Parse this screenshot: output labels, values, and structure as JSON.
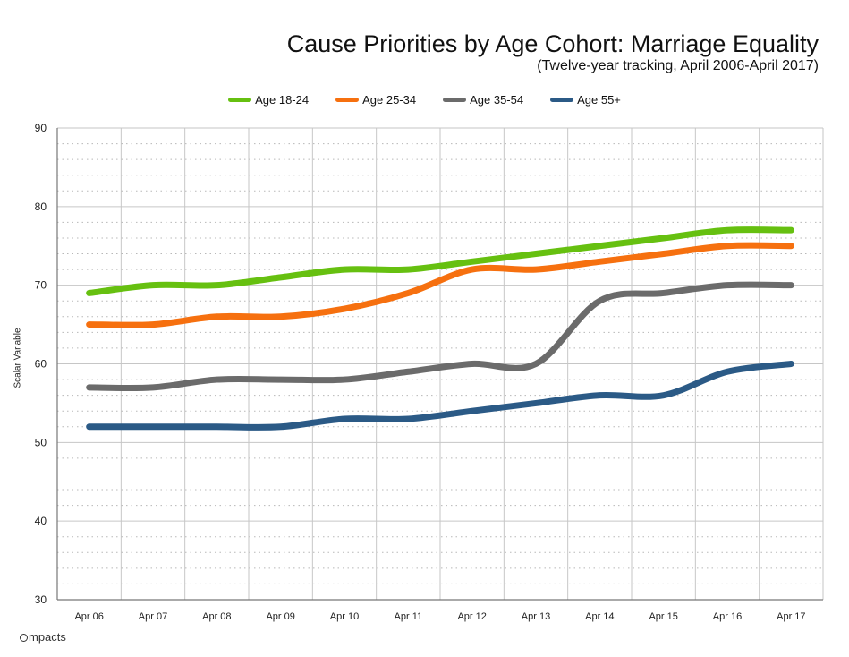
{
  "chart_data": {
    "type": "line",
    "title": "Cause Priorities by Age Cohort: Marriage Equality",
    "subtitle": "(Twelve-year tracking, April 2006-April 2017)",
    "ylabel": "Scalar Variable",
    "xlabel": "",
    "ylim": [
      30,
      90
    ],
    "yticks": [
      30,
      40,
      50,
      60,
      70,
      80,
      90
    ],
    "categories": [
      "Apr 06",
      "Apr 07",
      "Apr 08",
      "Apr 09",
      "Apr 10",
      "Apr 11",
      "Apr 12",
      "Apr 13",
      "Apr 14",
      "Apr 15",
      "Apr 16",
      "Apr 17"
    ],
    "grid": true,
    "legend_position": "top-center",
    "series": [
      {
        "name": "Age 18-24",
        "color": "#66c010",
        "values": [
          69,
          70,
          70,
          71,
          72,
          72,
          73,
          74,
          75,
          76,
          77,
          77
        ]
      },
      {
        "name": "Age 25-34",
        "color": "#f6700f",
        "values": [
          65,
          65,
          66,
          66,
          67,
          69,
          72,
          72,
          73,
          74,
          75,
          75
        ]
      },
      {
        "name": "Age 35-54",
        "color": "#6b6b6b",
        "values": [
          57,
          57,
          58,
          58,
          58,
          59,
          60,
          60,
          68,
          69,
          70,
          70
        ]
      },
      {
        "name": "Age 55+",
        "color": "#2b5a86",
        "values": [
          52,
          52,
          52,
          52,
          53,
          53,
          54,
          55,
          56,
          56,
          59,
          60
        ]
      }
    ]
  },
  "brand": {
    "name": "mpacts",
    "icon": "circle-i-logo"
  }
}
